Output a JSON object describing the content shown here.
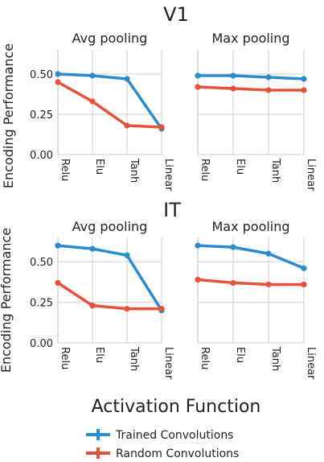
{
  "figure": {
    "xlabel": "Activation Function",
    "ylabel": "Encoding Performance"
  },
  "legend": {
    "placement": "bottom-center",
    "items": [
      {
        "label": "Trained Convolutions",
        "color": "#2a8ccc"
      },
      {
        "label": "Random Convolutions",
        "color": "#e8513a"
      }
    ]
  },
  "chart_data": [
    {
      "type": "line",
      "row_title": "V1",
      "title": "Avg pooling",
      "categories": [
        "Relu",
        "Elu",
        "Tanh",
        "Linear"
      ],
      "yticks": [
        "0.00",
        "0.25",
        "0.50"
      ],
      "ylim": [
        0,
        0.65
      ],
      "grid": true,
      "series": [
        {
          "name": "Trained Convolutions",
          "color": "#2a8ccc",
          "values": [
            0.5,
            0.49,
            0.47,
            0.16
          ]
        },
        {
          "name": "Random Convolutions",
          "color": "#e8513a",
          "values": [
            0.45,
            0.33,
            0.18,
            0.17
          ]
        }
      ]
    },
    {
      "type": "line",
      "row_title": "V1",
      "title": "Max pooling",
      "categories": [
        "Relu",
        "Elu",
        "Tanh",
        "Linear"
      ],
      "yticks": [
        "0.00",
        "0.25",
        "0.50"
      ],
      "ylim": [
        0,
        0.65
      ],
      "grid": true,
      "series": [
        {
          "name": "Trained Convolutions",
          "color": "#2a8ccc",
          "values": [
            0.49,
            0.49,
            0.48,
            0.47
          ]
        },
        {
          "name": "Random Convolutions",
          "color": "#e8513a",
          "values": [
            0.42,
            0.41,
            0.4,
            0.4
          ]
        }
      ]
    },
    {
      "type": "line",
      "row_title": "IT",
      "title": "Avg pooling",
      "categories": [
        "Relu",
        "Elu",
        "Tanh",
        "Linear"
      ],
      "yticks": [
        "0.00",
        "0.25",
        "0.50"
      ],
      "ylim": [
        0,
        0.65
      ],
      "grid": true,
      "series": [
        {
          "name": "Trained Convolutions",
          "color": "#2a8ccc",
          "values": [
            0.6,
            0.58,
            0.54,
            0.2
          ]
        },
        {
          "name": "Random Convolutions",
          "color": "#e8513a",
          "values": [
            0.37,
            0.23,
            0.21,
            0.21
          ]
        }
      ]
    },
    {
      "type": "line",
      "row_title": "IT",
      "title": "Max pooling",
      "categories": [
        "Relu",
        "Elu",
        "Tanh",
        "Linear"
      ],
      "yticks": [
        "0.00",
        "0.25",
        "0.50"
      ],
      "ylim": [
        0,
        0.65
      ],
      "grid": true,
      "series": [
        {
          "name": "Trained Convolutions",
          "color": "#2a8ccc",
          "values": [
            0.6,
            0.59,
            0.55,
            0.46
          ]
        },
        {
          "name": "Random Convolutions",
          "color": "#e8513a",
          "values": [
            0.39,
            0.37,
            0.36,
            0.36
          ]
        }
      ]
    }
  ]
}
